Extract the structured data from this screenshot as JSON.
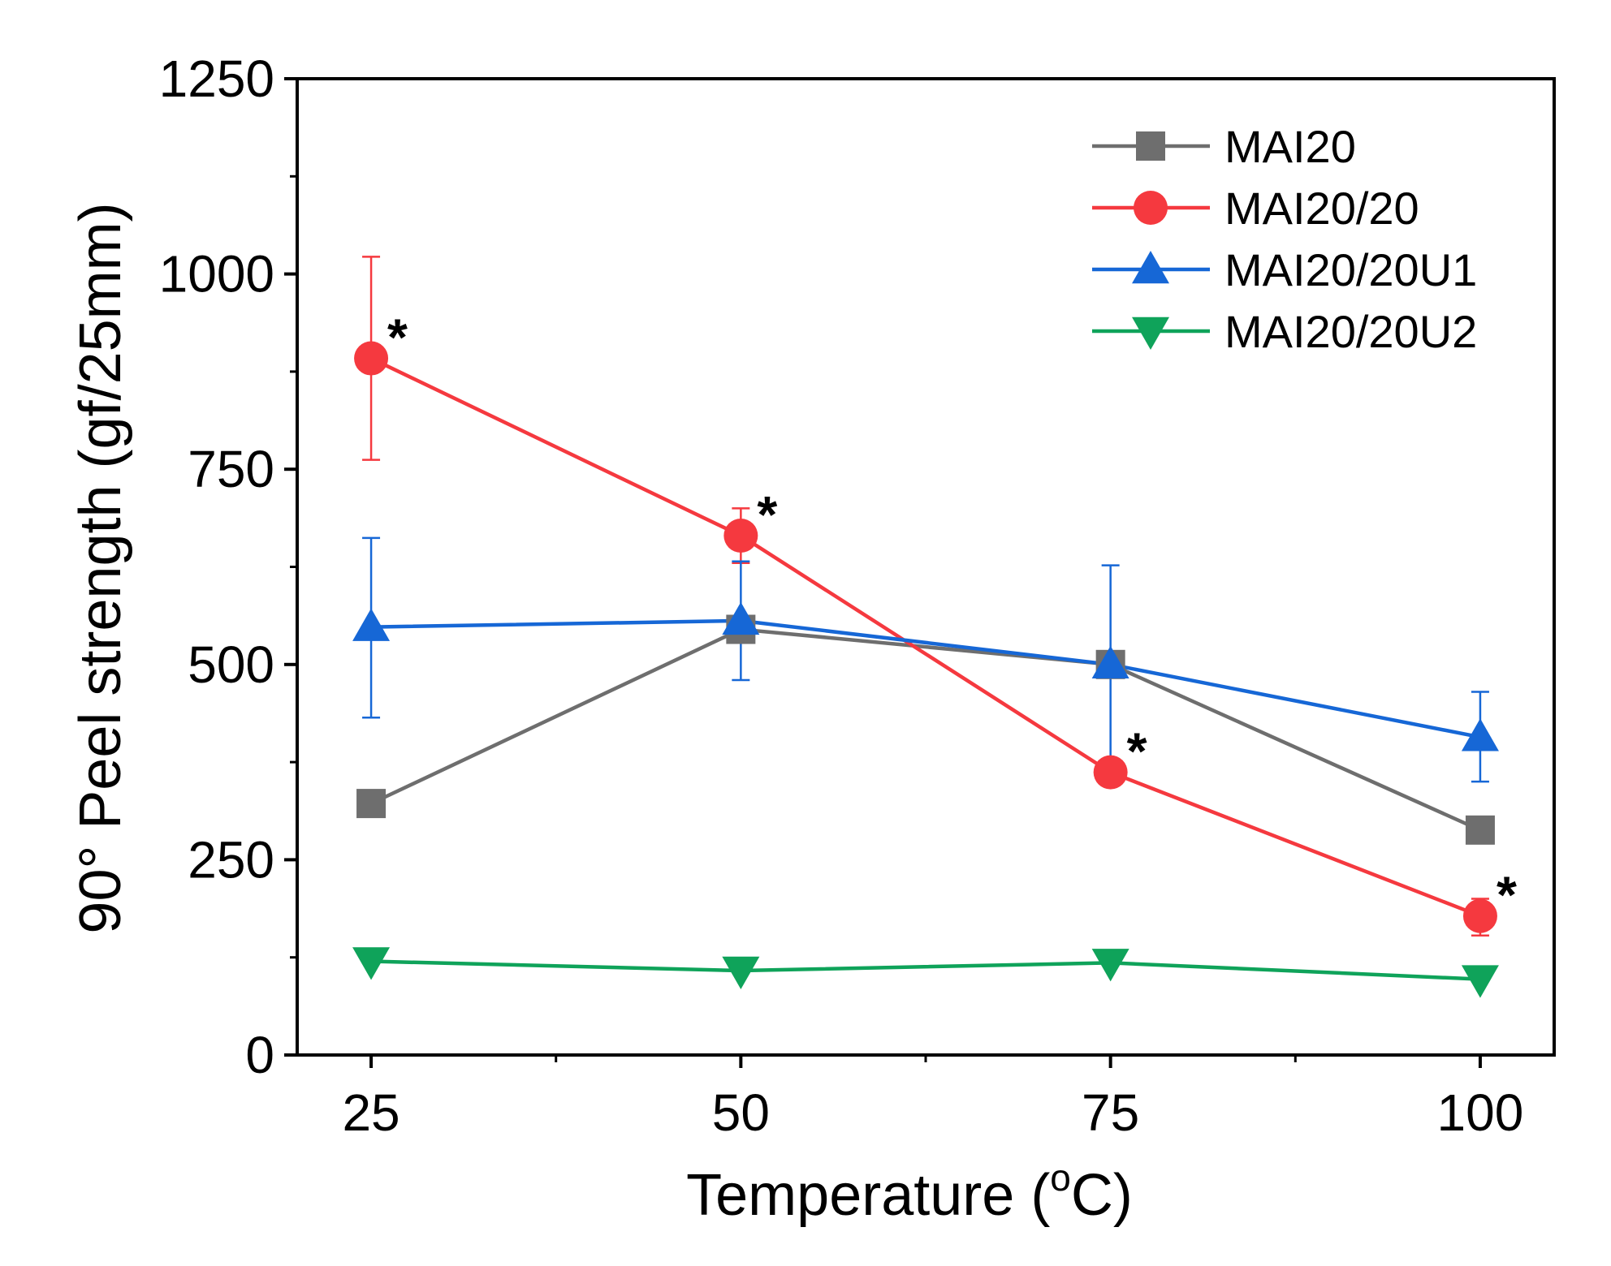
{
  "chart_data": {
    "type": "line",
    "xlabel": "Temperature (",
    "xlabel_sup": "o",
    "xlabel_suffix": "C)",
    "ylabel": "90° Peel strength (gf/25mm)",
    "x": [
      25,
      50,
      75,
      100
    ],
    "xticks": [
      "25",
      "50",
      "75",
      "100"
    ],
    "yticks": [
      "0",
      "250",
      "500",
      "750",
      "1000",
      "1250"
    ],
    "ytick_values": [
      0,
      250,
      500,
      750,
      1000,
      1250
    ],
    "xlim": [
      20,
      105
    ],
    "ylim": [
      0,
      1250
    ],
    "annotation_symbol": "*",
    "legend_position": "top-right",
    "series": [
      {
        "name": "MAI20",
        "color": "#6e6e6e",
        "marker": "square",
        "values": [
          322,
          545,
          500,
          288
        ],
        "error": null,
        "annotated": [
          false,
          false,
          false,
          false
        ]
      },
      {
        "name": "MAI20/20",
        "color": "#f5393f",
        "marker": "circle",
        "values": [
          892,
          665,
          362,
          178
        ],
        "error": [
          [
            762,
            1022
          ],
          [
            630,
            700
          ],
          null,
          [
            153,
            200
          ]
        ],
        "annotated": [
          true,
          true,
          true,
          true
        ]
      },
      {
        "name": "MAI20/20U1",
        "color": "#1667d6",
        "marker": "triangle-up",
        "values": [
          548,
          556,
          500,
          407
        ],
        "error": [
          [
            432,
            662
          ],
          [
            480,
            632
          ],
          [
            374,
            627
          ],
          [
            350,
            465
          ]
        ],
        "annotated": [
          false,
          false,
          false,
          false
        ]
      },
      {
        "name": "MAI20/20U2",
        "color": "#0fa35a",
        "marker": "triangle-down",
        "values": [
          120,
          108,
          118,
          97
        ],
        "error": null,
        "annotated": [
          false,
          false,
          false,
          false
        ]
      }
    ]
  }
}
